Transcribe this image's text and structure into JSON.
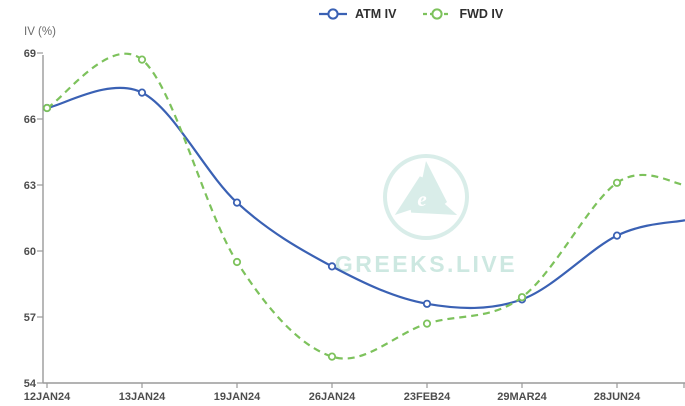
{
  "watermark": {
    "text": "GREEKS.LIVE",
    "logo_color": "#d9ede9",
    "text_color": "#cde8e1"
  },
  "axis": {
    "color": "#9a9a9a",
    "label_color": "#4d4d4d"
  },
  "chart_data": {
    "type": "line",
    "categories": [
      "12JAN24",
      "13JAN24",
      "19JAN24",
      "26JAN24",
      "23FEB24",
      "29MAR24",
      "28JUN24"
    ],
    "series": [
      {
        "name": "ATM IV",
        "color": "#3a61b4",
        "style": "solid",
        "marker": "circle",
        "values": [
          66.5,
          67.2,
          62.2,
          59.3,
          57.6,
          57.8,
          60.7
        ],
        "value_at_right_edge": 61.4
      },
      {
        "name": "FWD IV",
        "color": "#7dc25c",
        "style": "dashed",
        "marker": "circle",
        "values": [
          66.5,
          68.7,
          59.5,
          55.2,
          56.7,
          57.9,
          63.1
        ],
        "value_at_right_edge": 63.0
      }
    ],
    "title": "",
    "xlabel": "",
    "ylabel": "IV (%)",
    "ylim": [
      54,
      69
    ],
    "yticks": [
      54,
      57,
      60,
      63,
      66,
      69
    ],
    "grid": false,
    "legend_position": "top-center",
    "curve": "smooth"
  }
}
